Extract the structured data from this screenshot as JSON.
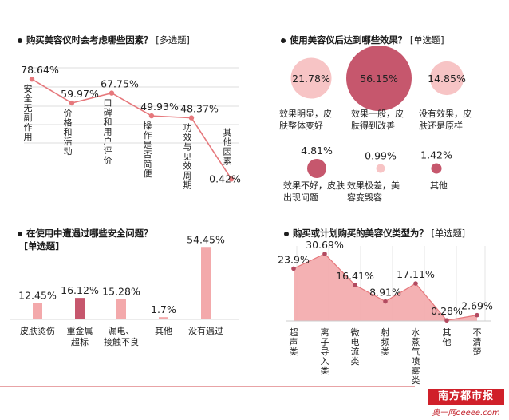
{
  "colors": {
    "pink": "#f3a9ab",
    "pink_light": "#f7c4c5",
    "rose": "#c6576d",
    "line": "#e6787c",
    "dark": "#b24a60"
  },
  "panel1": {
    "title": "购买美容仪时会考虑哪些因素？",
    "tag": "[多选题]"
  },
  "panel2": {
    "title": "使用美容仪后达到哪些效果？",
    "tag": "[单选题]"
  },
  "panel3": {
    "title": "在使用中遭遇过哪些安全问题？",
    "tag": "[单选题]"
  },
  "panel4": {
    "title": "购买或计划购买的美容仪类型为？",
    "tag": "[单选题]"
  },
  "chart_data": [
    {
      "type": "line",
      "categories": [
        "安全无副作用",
        "价格和活动",
        "口碑和用户评价",
        "操作是否简便",
        "功效与见效周期",
        "其他因素"
      ],
      "values": [
        78.64,
        59.97,
        67.75,
        49.93,
        48.37,
        0.42
      ],
      "value_labels": [
        "78.64%",
        "59.97%",
        "67.75%",
        "49.93%",
        "48.37%",
        "0.42%"
      ],
      "ylim": [
        0,
        100
      ]
    },
    {
      "type": "bubble",
      "categories": [
        "效果明显，皮肤整体变好",
        "效果一般，皮肤得到改善",
        "没有效果，皮肤还是原样",
        "效果不好，皮肤出现问题",
        "效果极差，美容变毁容",
        "其他"
      ],
      "values": [
        21.78,
        56.15,
        14.85,
        4.81,
        0.99,
        1.42
      ],
      "value_labels": [
        "21.78%",
        "56.15%",
        "14.85%",
        "4.81%",
        "0.99%",
        "1.42%"
      ],
      "label_lines": [
        [
          "效果明显，皮",
          "肤整体变好"
        ],
        [
          "效果一般，皮",
          "肤得到改善"
        ],
        [
          "没有效果，皮",
          "肤还是原样"
        ],
        [
          "效果不好，皮肤",
          "出现问题"
        ],
        [
          "效果极差，美",
          "容变毁容"
        ],
        [
          "其他"
        ]
      ]
    },
    {
      "type": "bar",
      "categories": [
        "皮肤烫伤",
        "重金属超标",
        "漏电、接触不良",
        "其他",
        "没有遇过"
      ],
      "label_lines": [
        [
          "皮肤烫伤"
        ],
        [
          "重金属",
          "超标"
        ],
        [
          "漏电、",
          "接触不良"
        ],
        [
          "其他"
        ],
        [
          "没有遇过"
        ]
      ],
      "values": [
        12.45,
        16.12,
        15.28,
        1.7,
        54.45
      ],
      "value_labels": [
        "12.45%",
        "16.12%",
        "15.28%",
        "1.7%",
        "54.45%"
      ],
      "ylim": [
        0,
        60
      ]
    },
    {
      "type": "area",
      "categories": [
        "超声类",
        "离子导入类",
        "微电流类",
        "射频类",
        "水蒸气喷雾类",
        "其他",
        "不清楚"
      ],
      "values": [
        23.9,
        30.69,
        16.41,
        8.91,
        17.11,
        0.28,
        2.69
      ],
      "value_labels": [
        "23.9%",
        "30.69%",
        "16.41%",
        "8.91%",
        "17.11%",
        "0.28%",
        "2.69%"
      ],
      "ylim": [
        0,
        35
      ]
    }
  ],
  "footer": {
    "logo": "南方都市报",
    "site": "奥一网oeeee.com"
  }
}
